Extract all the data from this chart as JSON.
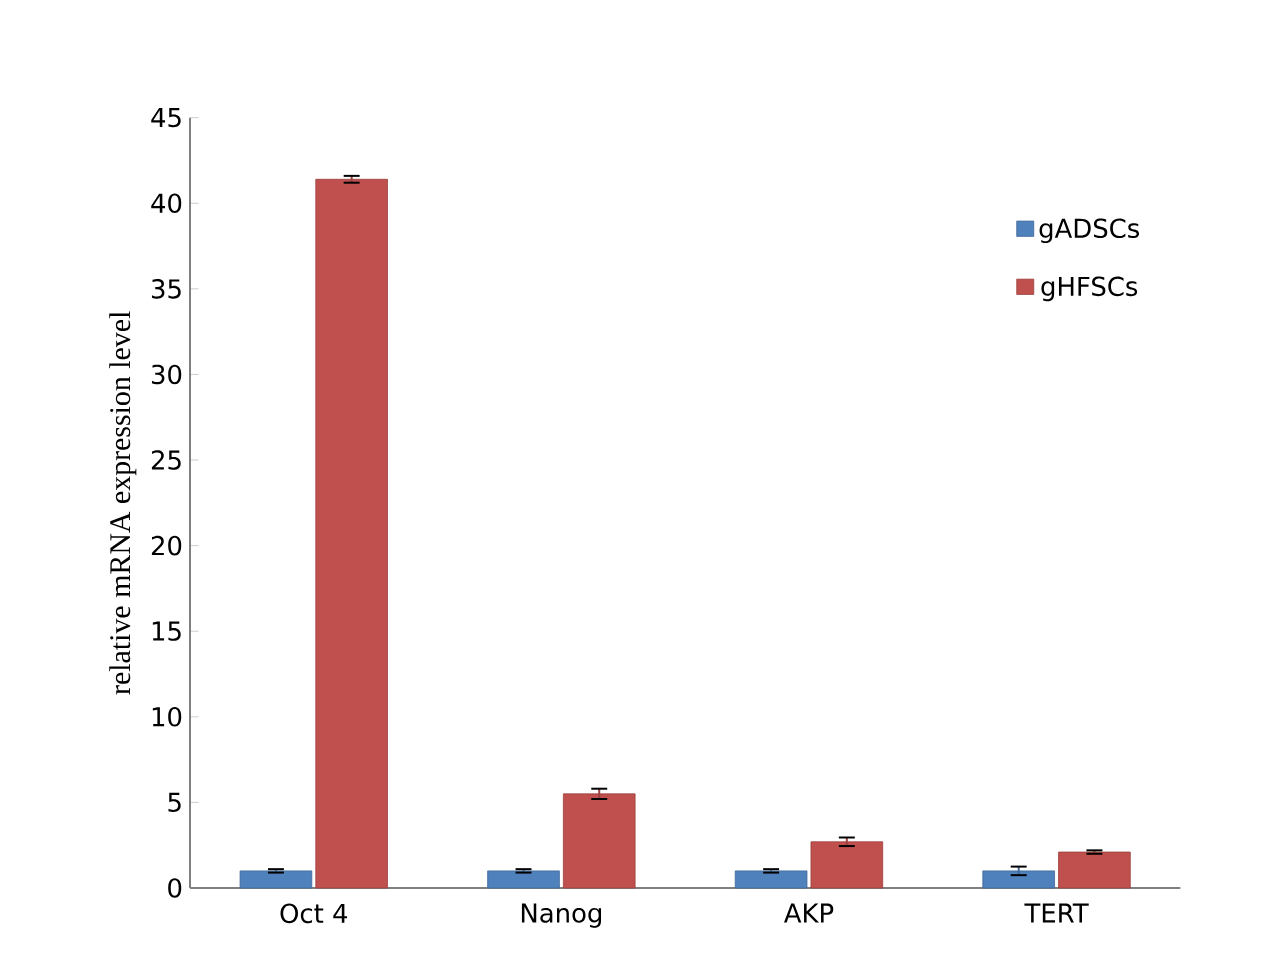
{
  "chart_data": {
    "type": "bar",
    "ylabel": "relative  mRNA expression  level",
    "categories": [
      "Oct 4",
      "Nanog",
      "AKP",
      "TERT"
    ],
    "series": [
      {
        "name": "gADSCs",
        "color": "#4f81bd",
        "values": [
          1,
          1,
          1,
          1
        ],
        "errors": [
          0.1,
          0.1,
          0.1,
          0.25
        ]
      },
      {
        "name": "gHFSCs",
        "color": "#c0504d",
        "values": [
          41.4,
          5.5,
          2.7,
          2.1
        ],
        "errors": [
          0.2,
          0.3,
          0.25,
          0.1
        ]
      }
    ],
    "ylim": [
      0,
      45
    ],
    "yticks": [
      0,
      5,
      10,
      15,
      20,
      25,
      30,
      35,
      40,
      45
    ],
    "grid": false,
    "legend": "top right"
  }
}
